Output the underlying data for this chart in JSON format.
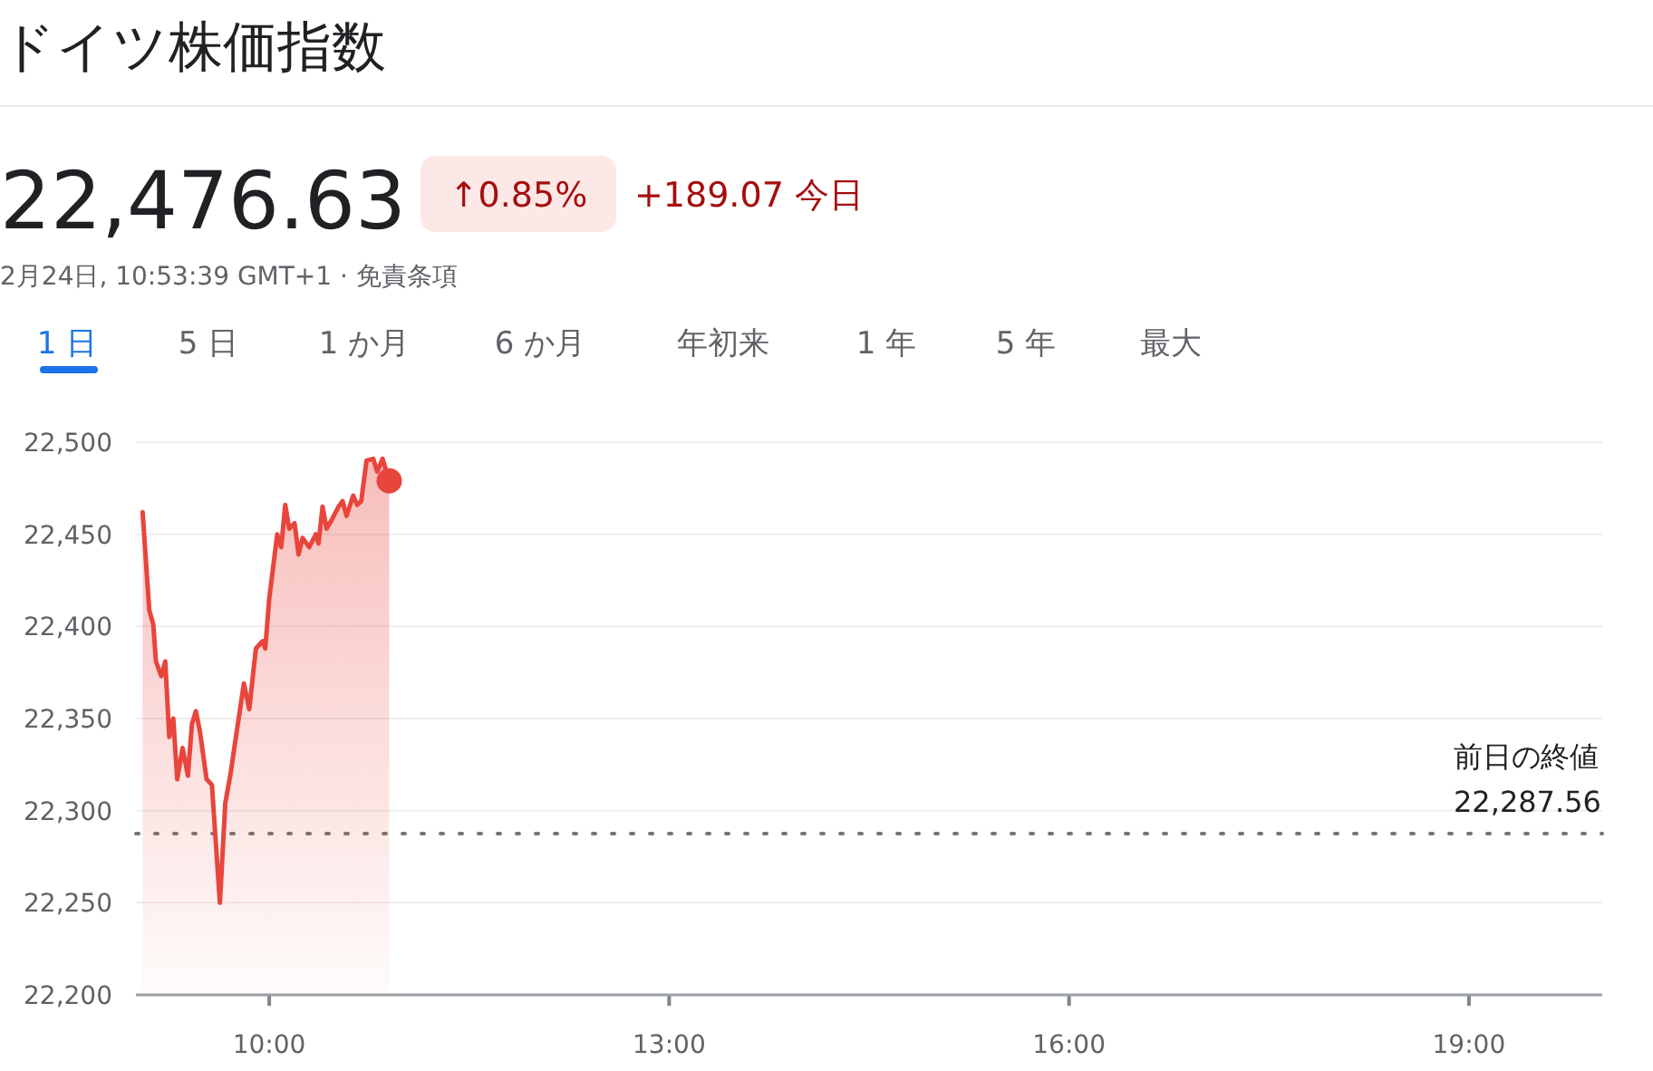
{
  "chart_data": {
    "type": "area",
    "title": "ドイツ株価指数",
    "annotations": [
      "22,476.63",
      "↑0.85%",
      "+189.07 今日",
      "2月24日, 10:53:39 GMT+1 · 免責条項",
      "1 日",
      "5 日",
      "1 か月",
      "6 か月",
      "年初来",
      "1 年",
      "5 年",
      "最大"
    ],
    "xlim": [
      9,
      20
    ],
    "ylim": [
      22200,
      22500
    ],
    "xticks": [
      {
        "value": 10,
        "label": "10:00"
      },
      {
        "value": 13,
        "label": "13:00"
      },
      {
        "value": 16,
        "label": "16:00"
      },
      {
        "value": 19,
        "label": "19:00"
      }
    ],
    "yticks": [
      {
        "value": 22200,
        "label": "22,200"
      },
      {
        "value": 22250,
        "label": "22,250"
      },
      {
        "value": 22300,
        "label": "22,300"
      },
      {
        "value": 22350,
        "label": "22,350"
      },
      {
        "value": 22400,
        "label": "22,400"
      },
      {
        "value": 22450,
        "label": "22,450"
      },
      {
        "value": 22500,
        "label": "22,500"
      }
    ],
    "grid": "y",
    "ref_lines": [
      {
        "axis": "y",
        "value": 22287.56,
        "label": "前日の終値 22,287.56",
        "color": "#757575",
        "line_style": "dotted"
      }
    ],
    "series": [
      {
        "color": "#e8453c",
        "x": [
          9.05,
          9.1,
          9.13,
          9.15,
          9.19,
          9.22,
          9.25,
          9.28,
          9.31,
          9.35,
          9.39,
          9.42,
          9.45,
          9.48,
          9.53,
          9.57,
          9.63,
          9.67,
          9.71,
          9.75,
          9.81,
          9.85,
          9.9,
          9.95,
          9.97,
          10.0,
          10.06,
          10.09,
          10.12,
          10.15,
          10.19,
          10.22,
          10.25,
          10.3,
          10.35,
          10.37,
          10.4,
          10.43,
          10.47,
          10.52,
          10.55,
          10.58,
          10.63,
          10.66,
          10.69,
          10.73,
          10.78,
          10.81,
          10.85,
          10.9
        ],
        "values": [
          22462,
          22409,
          22401,
          22381,
          22373,
          22381,
          22340,
          22350,
          22317,
          22334,
          22319,
          22347,
          22354,
          22343,
          22317,
          22314,
          22250,
          22304,
          22320,
          22340,
          22369,
          22355,
          22388,
          22392,
          22388,
          22415,
          22450,
          22443,
          22466,
          22453,
          22456,
          22439,
          22448,
          22443,
          22450,
          22445,
          22465,
          22453,
          22458,
          22465,
          22468,
          22460,
          22471,
          22466,
          22468,
          22490,
          22491,
          22484,
          22491,
          22479
        ]
      },
      {
        "type": "scatter",
        "marker": "circle",
        "color": "#e8453c",
        "x": [
          10.9
        ],
        "values": [
          22479
        ]
      }
    ]
  }
}
